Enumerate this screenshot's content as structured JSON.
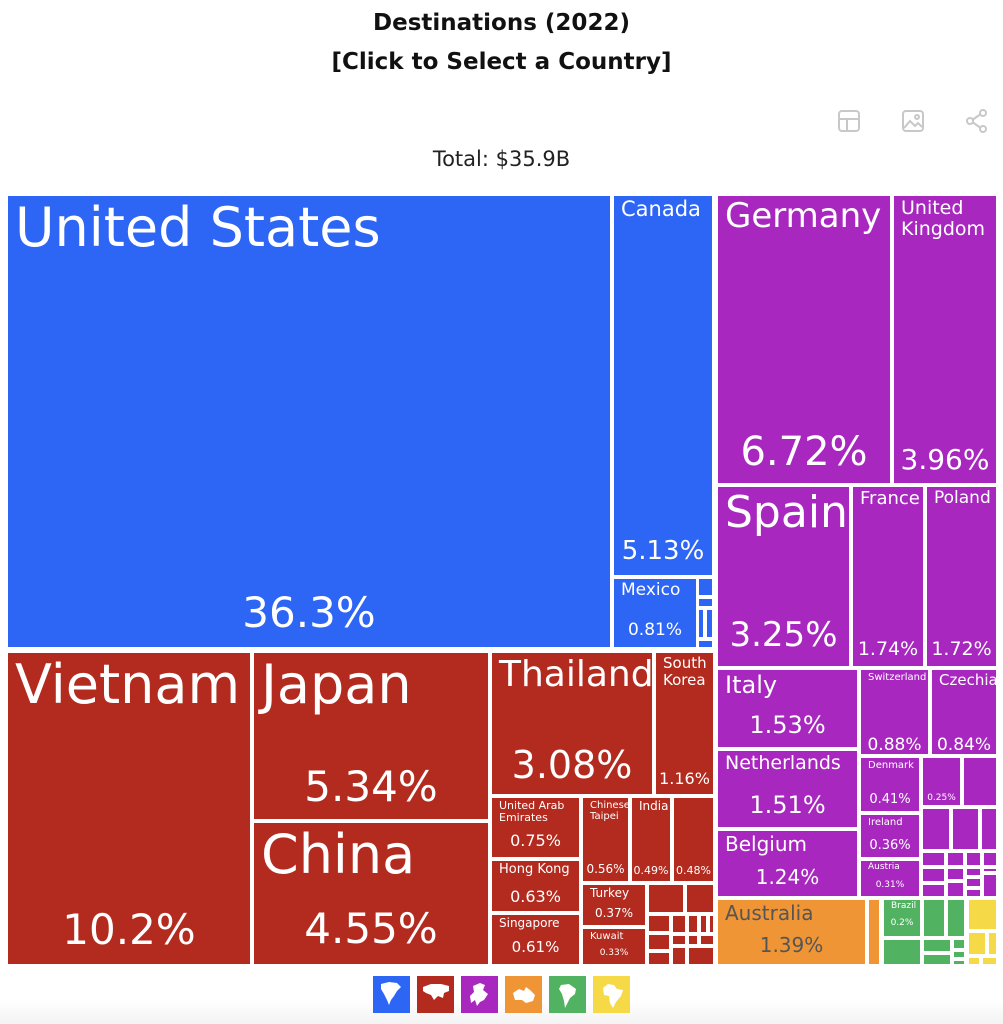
{
  "title": "Destinations (2022)",
  "subtitle": "[Click to Select a Country]",
  "total_label": "Total: $35.9B",
  "toolbar": {
    "icons": [
      "table-icon",
      "image-icon",
      "share-icon"
    ]
  },
  "colors": {
    "north_america": "#2D65F5",
    "asia": "#B32B1F",
    "europe": "#A828BF",
    "oceania": "#EF9535",
    "south_america": "#51B262",
    "africa": "#F6D947",
    "australia_text": "#555555"
  },
  "legend": [
    {
      "region": "north_america",
      "icon": "north-america-icon"
    },
    {
      "region": "asia",
      "icon": "asia-icon"
    },
    {
      "region": "europe",
      "icon": "europe-icon"
    },
    {
      "region": "oceania",
      "icon": "oceania-icon"
    },
    {
      "region": "south_america",
      "icon": "south-america-icon"
    },
    {
      "region": "africa",
      "icon": "africa-icon"
    }
  ],
  "chart_data": {
    "type": "treemap",
    "title": "Destinations (2022)",
    "total": "$35.9B",
    "unit": "% of total",
    "items": [
      {
        "name": "United States",
        "value": "36.3%",
        "region": "north_america"
      },
      {
        "name": "Canada",
        "value": "5.13%",
        "region": "north_america"
      },
      {
        "name": "Mexico",
        "value": "0.81%",
        "region": "north_america"
      },
      {
        "name": "Vietnam",
        "value": "10.2%",
        "region": "asia"
      },
      {
        "name": "Japan",
        "value": "5.34%",
        "region": "asia"
      },
      {
        "name": "China",
        "value": "4.55%",
        "region": "asia"
      },
      {
        "name": "Thailand",
        "value": "3.08%",
        "region": "asia"
      },
      {
        "name": "South Korea",
        "value": "1.16%",
        "region": "asia"
      },
      {
        "name": "United Arab Emirates",
        "value": "0.75%",
        "region": "asia"
      },
      {
        "name": "Hong Kong",
        "value": "0.63%",
        "region": "asia"
      },
      {
        "name": "Singapore",
        "value": "0.61%",
        "region": "asia"
      },
      {
        "name": "Chinese Taipei",
        "value": "0.56%",
        "region": "asia"
      },
      {
        "name": "India",
        "value": "0.49%",
        "region": "asia"
      },
      {
        "name": "",
        "value": "0.48%",
        "region": "asia"
      },
      {
        "name": "Turkey",
        "value": "0.37%",
        "region": "asia"
      },
      {
        "name": "Kuwait",
        "value": "0.33%",
        "region": "asia"
      },
      {
        "name": "Germany",
        "value": "6.72%",
        "region": "europe"
      },
      {
        "name": "United Kingdom",
        "value": "3.96%",
        "region": "europe"
      },
      {
        "name": "Spain",
        "value": "3.25%",
        "region": "europe"
      },
      {
        "name": "France",
        "value": "1.74%",
        "region": "europe"
      },
      {
        "name": "Poland",
        "value": "1.72%",
        "region": "europe"
      },
      {
        "name": "Italy",
        "value": "1.53%",
        "region": "europe"
      },
      {
        "name": "Netherlands",
        "value": "1.51%",
        "region": "europe"
      },
      {
        "name": "Belgium",
        "value": "1.24%",
        "region": "europe"
      },
      {
        "name": "Switzerland",
        "value": "0.88%",
        "region": "europe"
      },
      {
        "name": "Czechia",
        "value": "0.84%",
        "region": "europe"
      },
      {
        "name": "Denmark",
        "value": "0.41%",
        "region": "europe"
      },
      {
        "name": "",
        "value": "0.25%",
        "region": "europe"
      },
      {
        "name": "Ireland",
        "value": "0.36%",
        "region": "europe"
      },
      {
        "name": "Austria",
        "value": "0.31%",
        "region": "europe"
      },
      {
        "name": "Australia",
        "value": "1.39%",
        "region": "oceania"
      },
      {
        "name": "Brazil",
        "value": "0.2%",
        "region": "south_america"
      }
    ]
  }
}
